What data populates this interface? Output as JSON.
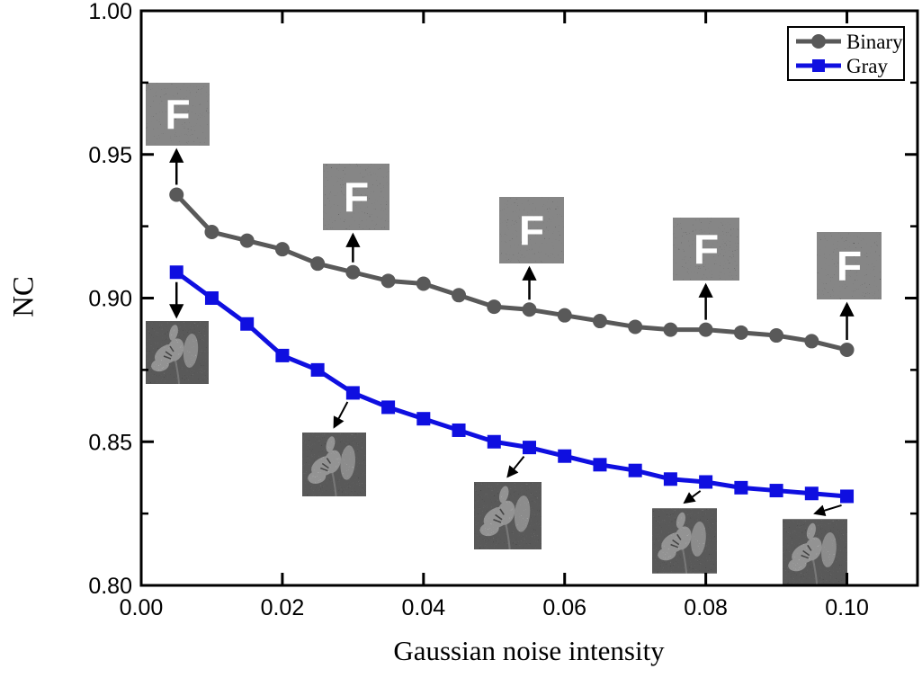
{
  "chart_data": {
    "type": "line",
    "title": "",
    "xlabel": "Gaussian noise intensity",
    "ylabel": "NC",
    "xlim": [
      0,
      0.11
    ],
    "ylim": [
      0.8,
      1.0
    ],
    "grid": false,
    "legend_position": "top-right",
    "x_major_ticks": [
      0.0,
      0.02,
      0.04,
      0.06,
      0.08,
      0.1
    ],
    "x_tick_labels": [
      "0.00",
      "0.02",
      "0.04",
      "0.06",
      "0.08",
      "0.10"
    ],
    "y_major_ticks": [
      1.0,
      0.95,
      0.9,
      0.85,
      0.8
    ],
    "y_tick_labels": [
      "1.00",
      "0.95",
      "0.90",
      "0.85",
      "0.80"
    ],
    "y_minor_ticks": [
      0.975,
      0.925,
      0.875,
      0.825
    ],
    "x": [
      0.005,
      0.01,
      0.015,
      0.02,
      0.025,
      0.03,
      0.035,
      0.04,
      0.045,
      0.05,
      0.055,
      0.06,
      0.065,
      0.07,
      0.075,
      0.08,
      0.085,
      0.09,
      0.095,
      0.1
    ],
    "series": [
      {
        "name": "Binary",
        "color": "#595959",
        "marker": "circle",
        "values": [
          0.936,
          0.923,
          0.92,
          0.917,
          0.912,
          0.909,
          0.906,
          0.905,
          0.901,
          0.897,
          0.896,
          0.894,
          0.892,
          0.89,
          0.889,
          0.889,
          0.888,
          0.887,
          0.885,
          0.882
        ]
      },
      {
        "name": "Gray",
        "color": "#0f0fe0",
        "marker": "square",
        "values": [
          0.909,
          0.9,
          0.891,
          0.88,
          0.875,
          0.867,
          0.862,
          0.858,
          0.854,
          0.85,
          0.848,
          0.845,
          0.842,
          0.84,
          0.837,
          0.836,
          0.834,
          0.833,
          0.832,
          0.831
        ]
      }
    ]
  },
  "annotations": {
    "watermark_label": "F",
    "watermark_callouts": [
      {
        "series": "Binary",
        "at_x": 0.005
      },
      {
        "series": "Binary",
        "at_x": 0.03
      },
      {
        "series": "Binary",
        "at_x": 0.055
      },
      {
        "series": "Binary",
        "at_x": 0.08
      },
      {
        "series": "Binary",
        "at_x": 0.1
      }
    ],
    "flower_callouts": [
      {
        "series": "Gray",
        "at_x": 0.005
      },
      {
        "series": "Gray",
        "at_x": 0.03
      },
      {
        "series": "Gray",
        "at_x": 0.055
      },
      {
        "series": "Gray",
        "at_x": 0.08
      },
      {
        "series": "Gray",
        "at_x": 0.1
      }
    ]
  }
}
